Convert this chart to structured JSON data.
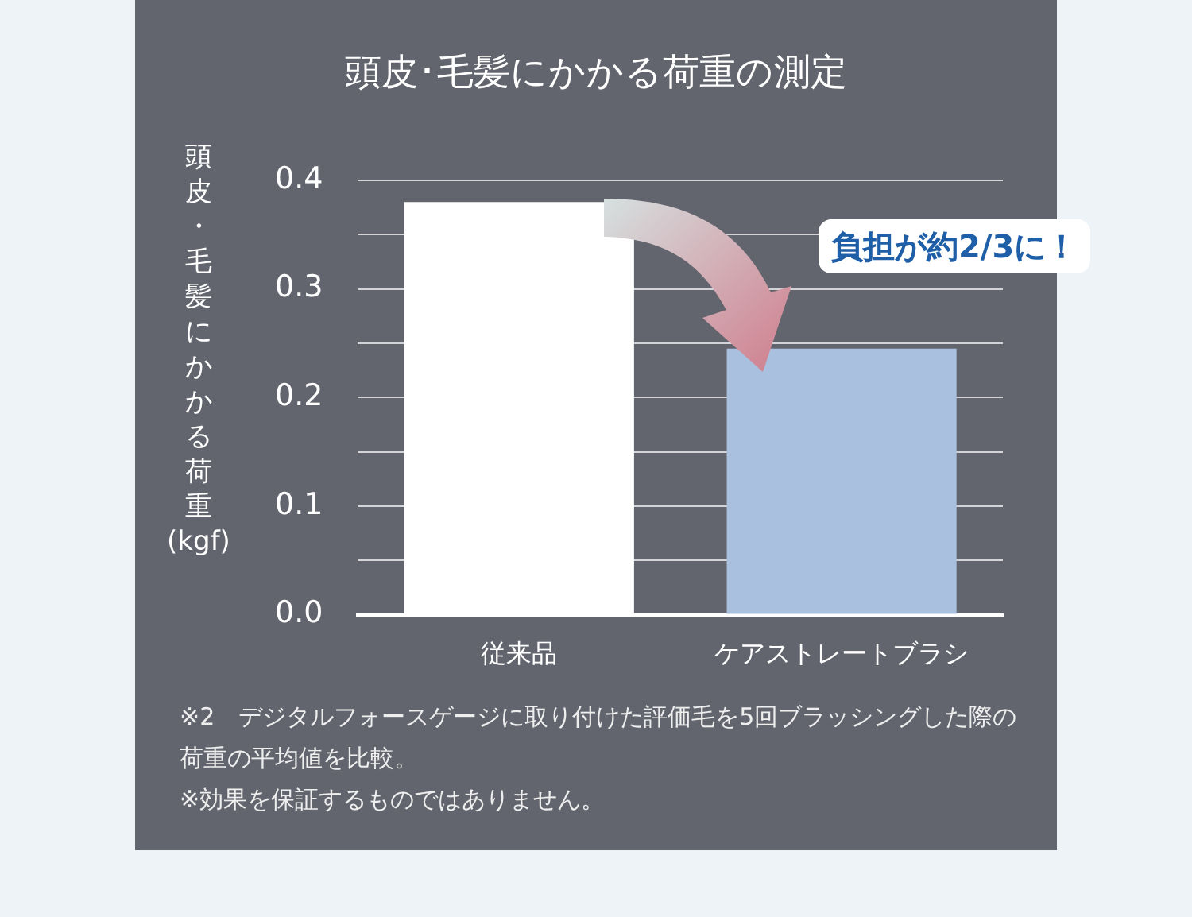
{
  "chart_data": {
    "type": "bar",
    "title": "頭皮･毛髪にかかる荷重の測定",
    "ylabel": "頭皮・毛髪にかかる荷重(kgf)",
    "categories": [
      "従来品",
      "ケアストレートブラシ"
    ],
    "values": [
      0.38,
      0.245
    ],
    "colors": [
      "#ffffff",
      "#a9c1de"
    ],
    "ylim": [
      0,
      0.4
    ],
    "yticks": [
      {
        "value": 0,
        "label": "0.0"
      },
      {
        "value": 0.05,
        "label": null
      },
      {
        "value": 0.1,
        "label": "0.1"
      },
      {
        "value": 0.15,
        "label": null
      },
      {
        "value": 0.2,
        "label": "0.2"
      },
      {
        "value": 0.25,
        "label": null
      },
      {
        "value": 0.3,
        "label": "0.3"
      },
      {
        "value": 0.35,
        "label": null
      },
      {
        "value": 0.4,
        "label": "0.4"
      }
    ],
    "grid": "y",
    "annotations": [
      "負担が約2/3に！",
      "※2　デジタルフォースゲージに取り付けた評価毛を5回ブラッシングした際の荷重の平均値を比較。",
      "※効果を保証するものではありません。"
    ]
  }
}
